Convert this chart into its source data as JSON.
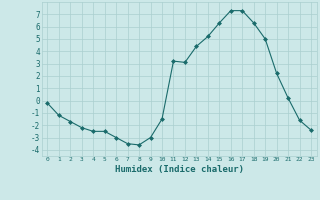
{
  "x": [
    0,
    1,
    2,
    3,
    4,
    5,
    6,
    7,
    8,
    9,
    10,
    11,
    12,
    13,
    14,
    15,
    16,
    17,
    18,
    19,
    20,
    21,
    22,
    23
  ],
  "y": [
    -0.2,
    -1.2,
    -1.7,
    -2.2,
    -2.5,
    -2.5,
    -3.0,
    -3.5,
    -3.6,
    -3.0,
    -1.5,
    3.2,
    3.1,
    4.4,
    5.2,
    6.3,
    7.3,
    7.3,
    6.3,
    5.0,
    2.2,
    0.2,
    -1.6,
    -2.4
  ],
  "xlabel": "Humidex (Indice chaleur)",
  "ylabel": "",
  "ylim": [
    -4.5,
    8.0
  ],
  "xlim": [
    -0.5,
    23.5
  ],
  "bg_color": "#cce8e8",
  "grid_color": "#aacfcf",
  "line_color": "#1a6b6b",
  "marker_color": "#1a6b6b",
  "tick_label_color": "#1a6b6b",
  "xlabel_color": "#1a6b6b",
  "yticks": [
    -4,
    -3,
    -2,
    -1,
    0,
    1,
    2,
    3,
    4,
    5,
    6,
    7
  ],
  "xticks": [
    0,
    1,
    2,
    3,
    4,
    5,
    6,
    7,
    8,
    9,
    10,
    11,
    12,
    13,
    14,
    15,
    16,
    17,
    18,
    19,
    20,
    21,
    22,
    23
  ]
}
